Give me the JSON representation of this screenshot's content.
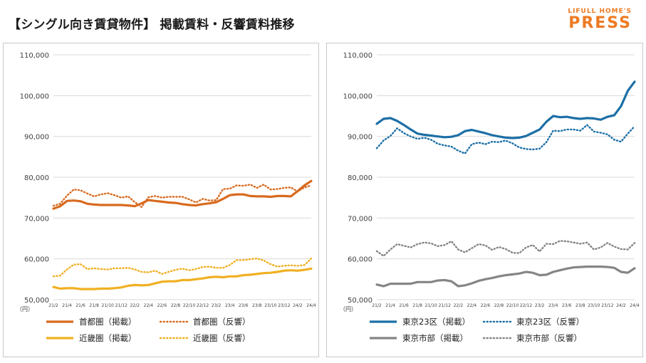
{
  "title": "【シングル向き賃貸物件】 掲載賃料・反響賃料推移",
  "brand": {
    "top": "LIFULL HOME'S",
    "main": "PRESS"
  },
  "colors": {
    "orange": "#d86a1f",
    "yellow": "#f0b022",
    "blue": "#1c6fa6",
    "gray": "#858585",
    "gridline": "#d9d9d9",
    "brand": "#ee7a22"
  },
  "chart_data": [
    {
      "type": "line",
      "title": "",
      "xlabel": "",
      "ylabel": "（円）",
      "ylim": [
        50000,
        110000
      ],
      "yticks": [
        50000,
        60000,
        70000,
        80000,
        90000,
        100000,
        110000
      ],
      "ytick_labels": [
        "50,000",
        "60,000",
        "70,000",
        "80,000",
        "90,000",
        "100,000",
        "110,000"
      ],
      "categories": [
        "21/2",
        "21/3",
        "21/4",
        "21/5",
        "21/6",
        "21/7",
        "21/8",
        "21/9",
        "21/10",
        "21/11",
        "21/12",
        "22/1",
        "22/2",
        "22/3",
        "22/4",
        "22/5",
        "22/6",
        "22/7",
        "22/8",
        "22/9",
        "22/10",
        "22/11",
        "22/12",
        "23/1",
        "23/2",
        "23/3",
        "23/4",
        "23/5",
        "23/6",
        "23/7",
        "23/8",
        "23/9",
        "23/10",
        "23/11",
        "23/12",
        "24/1",
        "24/2",
        "24/3",
        "24/4"
      ],
      "tick_labels": [
        "21/2",
        "21/4",
        "21/6",
        "21/8",
        "21/10",
        "21/12",
        "22/2",
        "22/4",
        "22/6",
        "22/8",
        "22/10",
        "22/12",
        "23/2",
        "23/4",
        "23/6",
        "23/8",
        "23/10",
        "23/12",
        "24/2",
        "24/4"
      ],
      "series": [
        {
          "name": "首都圏（掲載）",
          "color": "#d86a1f",
          "style": "solid",
          "values": [
            72300,
            72900,
            74200,
            74300,
            74100,
            73500,
            73300,
            73200,
            73200,
            73200,
            73200,
            73100,
            72900,
            73600,
            74400,
            74200,
            74000,
            73800,
            73700,
            73400,
            73200,
            73100,
            73400,
            73600,
            73900,
            74700,
            75600,
            75800,
            75800,
            75400,
            75300,
            75300,
            75200,
            75400,
            75400,
            75300,
            76600,
            78000,
            79100
          ]
        },
        {
          "name": "首都圏（反響）",
          "color": "#d86a1f",
          "style": "dotted",
          "values": [
            73000,
            73500,
            75500,
            77000,
            76800,
            76000,
            75300,
            75800,
            76100,
            75600,
            75000,
            75300,
            73900,
            72700,
            75100,
            75400,
            75000,
            75200,
            75200,
            75200,
            74600,
            73800,
            74700,
            74300,
            74400,
            77100,
            77200,
            78000,
            77900,
            78200,
            77400,
            78200,
            77000,
            77100,
            77400,
            77500,
            76500,
            77500,
            78000
          ]
        },
        {
          "name": "近畿圏（掲載）",
          "color": "#f0b022",
          "style": "solid",
          "values": [
            53100,
            52700,
            52800,
            52800,
            52600,
            52600,
            52600,
            52700,
            52700,
            52800,
            53000,
            53400,
            53600,
            53500,
            53600,
            54000,
            54400,
            54500,
            54500,
            54800,
            54800,
            55000,
            55200,
            55500,
            55600,
            55500,
            55700,
            55700,
            56000,
            56100,
            56300,
            56500,
            56600,
            56800,
            57100,
            57200,
            57100,
            57300,
            57600
          ]
        },
        {
          "name": "近畿圏（反響）",
          "color": "#f0b022",
          "style": "dotted",
          "values": [
            55700,
            55900,
            57400,
            58600,
            58700,
            57500,
            57700,
            57500,
            57400,
            57700,
            57700,
            57800,
            57400,
            56800,
            56700,
            57100,
            56300,
            56800,
            57300,
            57600,
            57200,
            57500,
            58000,
            58100,
            57800,
            57800,
            58500,
            59700,
            59700,
            59900,
            60100,
            59600,
            58700,
            58100,
            58300,
            58400,
            58300,
            58500,
            60100
          ]
        }
      ]
    },
    {
      "type": "line",
      "title": "",
      "xlabel": "",
      "ylabel": "（円）",
      "ylim": [
        50000,
        110000
      ],
      "yticks": [
        50000,
        60000,
        70000,
        80000,
        90000,
        100000,
        110000
      ],
      "ytick_labels": [
        "50,000",
        "60,000",
        "70,000",
        "80,000",
        "90,000",
        "100,000",
        "110,000"
      ],
      "categories": [
        "21/2",
        "21/3",
        "21/4",
        "21/5",
        "21/6",
        "21/7",
        "21/8",
        "21/9",
        "21/10",
        "21/11",
        "21/12",
        "22/1",
        "22/2",
        "22/3",
        "22/4",
        "22/5",
        "22/6",
        "22/7",
        "22/8",
        "22/9",
        "22/10",
        "22/11",
        "22/12",
        "23/1",
        "23/2",
        "23/3",
        "23/4",
        "23/5",
        "23/6",
        "23/7",
        "23/8",
        "23/9",
        "23/10",
        "23/11",
        "23/12",
        "24/1",
        "24/2",
        "24/3",
        "24/4"
      ],
      "tick_labels": [
        "21/2",
        "21/4",
        "21/6",
        "21/8",
        "21/10",
        "21/12",
        "22/2",
        "22/4",
        "22/6",
        "22/8",
        "22/10",
        "22/12",
        "23/2",
        "23/4",
        "23/6",
        "23/8",
        "23/10",
        "23/12",
        "24/2",
        "24/4"
      ],
      "series": [
        {
          "name": "東京23区（掲載）",
          "color": "#1c6fa6",
          "style": "solid",
          "values": [
            93100,
            94300,
            94500,
            93800,
            92800,
            91700,
            90700,
            90400,
            90200,
            90000,
            89800,
            89900,
            90300,
            91300,
            91600,
            91200,
            90800,
            90300,
            90000,
            89700,
            89600,
            89700,
            90100,
            90900,
            91700,
            93600,
            95000,
            94700,
            94800,
            94500,
            94300,
            94500,
            94400,
            94100,
            94800,
            95200,
            97400,
            101200,
            103400
          ]
        },
        {
          "name": "東京23区（反響）",
          "color": "#1c6fa6",
          "style": "dotted",
          "values": [
            87100,
            89000,
            90100,
            92000,
            90800,
            90000,
            89400,
            89700,
            89200,
            88200,
            87800,
            87500,
            86500,
            85800,
            88100,
            88500,
            88100,
            88700,
            88600,
            89000,
            88300,
            87300,
            86900,
            86800,
            87000,
            88600,
            91400,
            91300,
            91700,
            91700,
            91400,
            92800,
            91200,
            90900,
            90500,
            89200,
            88700,
            90700,
            92500
          ]
        },
        {
          "name": "東京市部（掲載）",
          "color": "#858585",
          "style": "solid",
          "values": [
            53700,
            53300,
            53900,
            53900,
            53900,
            53900,
            54300,
            54300,
            54300,
            54700,
            54800,
            54500,
            53300,
            53500,
            54000,
            54600,
            55000,
            55300,
            55700,
            56000,
            56200,
            56400,
            56800,
            56600,
            56000,
            56100,
            56800,
            57200,
            57600,
            57900,
            58000,
            58100,
            58100,
            58100,
            58000,
            57800,
            56800,
            56600,
            57700
          ]
        },
        {
          "name": "東京市部（反響）",
          "color": "#858585",
          "style": "dotted",
          "values": [
            61900,
            60700,
            62300,
            63600,
            63200,
            62800,
            63600,
            64000,
            63800,
            63100,
            63400,
            64300,
            62300,
            61600,
            62600,
            63600,
            63300,
            62200,
            62900,
            62400,
            61500,
            61400,
            62800,
            63400,
            61800,
            63700,
            63600,
            64400,
            64300,
            64000,
            63700,
            64000,
            62300,
            62800,
            63900,
            63000,
            62400,
            62300,
            63900
          ]
        }
      ]
    }
  ]
}
